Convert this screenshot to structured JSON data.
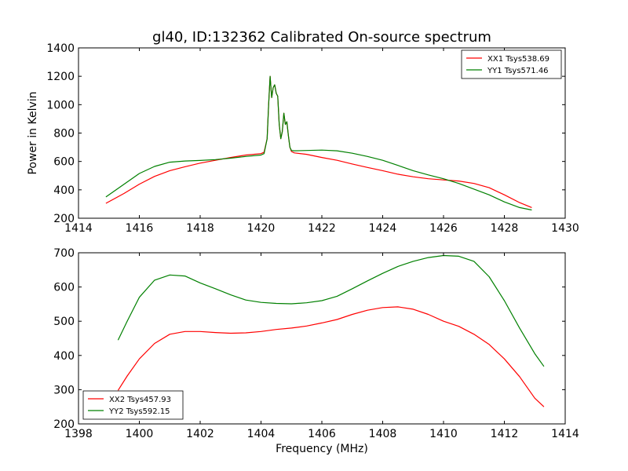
{
  "figure": {
    "title": "gl40, ID:132362 Calibrated On-source spectrum"
  },
  "chart_data": [
    {
      "type": "line",
      "title": "gl40, ID:132362 Calibrated On-source spectrum",
      "xlabel": "",
      "ylabel": "Power in Kelvin",
      "xlim": [
        1414,
        1430
      ],
      "ylim": [
        200,
        1400
      ],
      "xticks": [
        1414,
        1416,
        1418,
        1420,
        1422,
        1424,
        1426,
        1428,
        1430
      ],
      "yticks": [
        200,
        400,
        600,
        800,
        1000,
        1200,
        1400
      ],
      "grid": false,
      "legend_position": "top-right",
      "series": [
        {
          "name": "XX1 Tsys538.69",
          "color": "#ff0000",
          "x": [
            1414.9,
            1415.5,
            1416.0,
            1416.5,
            1417.0,
            1417.5,
            1418.0,
            1418.5,
            1419.0,
            1419.5,
            1420.0,
            1420.1,
            1420.2,
            1420.25,
            1420.3,
            1420.35,
            1420.4,
            1420.45,
            1420.5,
            1420.55,
            1420.6,
            1420.65,
            1420.7,
            1420.75,
            1420.8,
            1420.85,
            1420.9,
            1420.95,
            1421.0,
            1421.1,
            1421.5,
            1422.0,
            1422.5,
            1423.0,
            1423.5,
            1424.0,
            1424.5,
            1425.0,
            1425.5,
            1426.0,
            1426.5,
            1427.0,
            1427.5,
            1428.0,
            1428.5,
            1428.9
          ],
          "values": [
            305,
            375,
            440,
            495,
            535,
            563,
            588,
            608,
            628,
            645,
            655,
            665,
            760,
            1000,
            1200,
            1050,
            1120,
            1140,
            1080,
            1060,
            860,
            760,
            810,
            940,
            860,
            880,
            780,
            700,
            670,
            660,
            650,
            628,
            608,
            582,
            558,
            535,
            510,
            492,
            478,
            470,
            462,
            445,
            415,
            365,
            310,
            275
          ]
        },
        {
          "name": "YY1 Tsys571.46",
          "color": "#008000",
          "x": [
            1414.9,
            1415.5,
            1416.0,
            1416.5,
            1417.0,
            1417.5,
            1418.0,
            1418.5,
            1419.0,
            1419.5,
            1420.0,
            1420.1,
            1420.2,
            1420.25,
            1420.3,
            1420.35,
            1420.4,
            1420.45,
            1420.5,
            1420.55,
            1420.6,
            1420.65,
            1420.7,
            1420.75,
            1420.8,
            1420.85,
            1420.9,
            1420.95,
            1421.0,
            1421.1,
            1421.5,
            1422.0,
            1422.5,
            1423.0,
            1423.5,
            1424.0,
            1424.5,
            1425.0,
            1425.5,
            1426.0,
            1426.5,
            1427.0,
            1427.5,
            1428.0,
            1428.5,
            1428.9
          ],
          "values": [
            350,
            440,
            515,
            565,
            595,
            603,
            607,
            613,
            623,
            635,
            645,
            655,
            760,
            1000,
            1200,
            1050,
            1120,
            1140,
            1080,
            1060,
            860,
            760,
            810,
            940,
            860,
            880,
            780,
            700,
            677,
            675,
            677,
            680,
            675,
            658,
            635,
            608,
            572,
            535,
            505,
            478,
            445,
            405,
            365,
            315,
            275,
            258
          ]
        }
      ]
    },
    {
      "type": "line",
      "title": "",
      "xlabel": "Frequency (MHz)",
      "ylabel": "",
      "xlim": [
        1398,
        1414
      ],
      "ylim": [
        200,
        700
      ],
      "xticks": [
        1398,
        1400,
        1402,
        1404,
        1406,
        1408,
        1410,
        1412,
        1414
      ],
      "yticks": [
        200,
        300,
        400,
        500,
        600,
        700
      ],
      "grid": false,
      "legend_position": "bottom-left",
      "series": [
        {
          "name": "XX2 Tsys457.93",
          "color": "#ff0000",
          "x": [
            1399.3,
            1399.6,
            1400.0,
            1400.5,
            1401.0,
            1401.5,
            1402.0,
            1402.5,
            1403.0,
            1403.5,
            1404.0,
            1404.5,
            1405.0,
            1405.5,
            1406.0,
            1406.5,
            1407.0,
            1407.5,
            1408.0,
            1408.5,
            1409.0,
            1409.5,
            1410.0,
            1410.5,
            1411.0,
            1411.5,
            1412.0,
            1412.5,
            1413.0,
            1413.3
          ],
          "values": [
            298,
            340,
            390,
            435,
            462,
            470,
            470,
            467,
            465,
            466,
            470,
            476,
            480,
            486,
            495,
            505,
            520,
            532,
            540,
            542,
            535,
            520,
            500,
            485,
            462,
            432,
            390,
            338,
            275,
            250
          ]
        },
        {
          "name": "YY2 Tsys592.15",
          "color": "#008000",
          "x": [
            1399.3,
            1399.6,
            1400.0,
            1400.5,
            1401.0,
            1401.5,
            1402.0,
            1402.5,
            1403.0,
            1403.5,
            1404.0,
            1404.5,
            1405.0,
            1405.5,
            1406.0,
            1406.5,
            1407.0,
            1407.5,
            1408.0,
            1408.5,
            1409.0,
            1409.5,
            1410.0,
            1410.5,
            1411.0,
            1411.5,
            1412.0,
            1412.5,
            1413.0,
            1413.3
          ],
          "values": [
            445,
            500,
            570,
            620,
            635,
            632,
            612,
            595,
            577,
            562,
            555,
            552,
            551,
            554,
            560,
            573,
            595,
            618,
            640,
            660,
            675,
            686,
            692,
            690,
            675,
            630,
            560,
            480,
            405,
            368
          ]
        }
      ]
    }
  ]
}
